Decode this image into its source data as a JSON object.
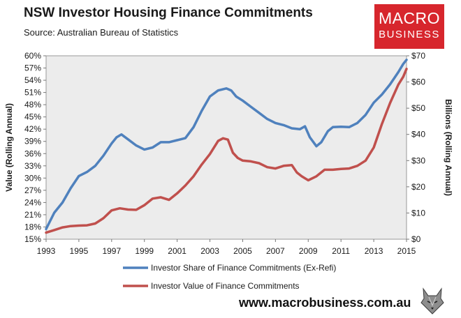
{
  "header": {
    "title": "NSW Investor Housing Finance Commitments",
    "subtitle": "Source: Australian Bureau of Statistics"
  },
  "logo": {
    "line1": "MACRO",
    "line2": "BUSINESS"
  },
  "footer": {
    "url": "www.macrobusiness.com.au"
  },
  "colors": {
    "blue": "#4f81bd",
    "red": "#c0504d",
    "plot_bg": "#ececec",
    "logo_red": "#d7262d"
  },
  "chart_data": {
    "type": "line",
    "title": "NSW Investor Housing Finance Commitments",
    "subtitle": "Source: Australian Bureau of Statistics",
    "ylabel_left": "Value (Rolling Annual)",
    "ylabel_right": "Billions (Rolling Annual)",
    "xlim": [
      1993,
      2015
    ],
    "ylim_left": [
      15,
      60
    ],
    "ylim_right": [
      0,
      70
    ],
    "x_ticks": [
      "1993",
      "1995",
      "1997",
      "1999",
      "2001",
      "2003",
      "2005",
      "2007",
      "2009",
      "2011",
      "2013",
      "2015"
    ],
    "y_ticks_left": [
      "60%",
      "57%",
      "54%",
      "51%",
      "48%",
      "45%",
      "42%",
      "39%",
      "36%",
      "33%",
      "30%",
      "27%",
      "24%",
      "21%",
      "18%",
      "15%"
    ],
    "y_ticks_right": [
      "$70",
      "$60",
      "$50",
      "$40",
      "$30",
      "$20",
      "$10",
      "$0"
    ],
    "grid": false,
    "legend_position": "bottom",
    "series": [
      {
        "name": "Investor Share of Finance Commitments (Ex-Refi)",
        "axis": "left",
        "unit": "%",
        "color": "#4f81bd",
        "x": [
          1993.0,
          1993.5,
          1994.0,
          1994.5,
          1995.0,
          1995.5,
          1996.0,
          1996.5,
          1997.0,
          1997.3,
          1997.6,
          1998.0,
          1998.5,
          1999.0,
          1999.5,
          2000.0,
          2000.5,
          2001.0,
          2001.5,
          2002.0,
          2002.5,
          2003.0,
          2003.5,
          2004.0,
          2004.3,
          2004.6,
          2005.0,
          2005.5,
          2006.0,
          2006.5,
          2007.0,
          2007.5,
          2008.0,
          2008.5,
          2008.8,
          2009.1,
          2009.5,
          2009.8,
          2010.2,
          2010.5,
          2011.0,
          2011.5,
          2012.0,
          2012.5,
          2013.0,
          2013.5,
          2014.0,
          2014.5,
          2014.8,
          2015.0
        ],
        "values": [
          17.5,
          21.5,
          24.0,
          27.5,
          30.5,
          31.5,
          33.0,
          35.5,
          38.5,
          40.0,
          40.7,
          39.5,
          38.0,
          37.0,
          37.5,
          38.8,
          38.8,
          39.3,
          39.8,
          42.5,
          46.5,
          50.0,
          51.5,
          52.0,
          51.5,
          50.0,
          49.0,
          47.5,
          46.0,
          44.5,
          43.5,
          43.0,
          42.2,
          42.0,
          42.7,
          40.0,
          37.8,
          38.8,
          41.5,
          42.5,
          42.6,
          42.5,
          43.5,
          45.5,
          48.5,
          50.5,
          53.0,
          56.0,
          58.0,
          59.0
        ]
      },
      {
        "name": "Investor Value of Finance Commitments",
        "axis": "right",
        "unit": "$bn",
        "color": "#c0504d",
        "x": [
          1993.0,
          1993.5,
          1994.0,
          1994.5,
          1995.0,
          1995.5,
          1996.0,
          1996.5,
          1997.0,
          1997.5,
          1998.0,
          1998.5,
          1999.0,
          1999.5,
          2000.0,
          2000.5,
          2001.0,
          2001.5,
          2002.0,
          2002.5,
          2003.0,
          2003.5,
          2003.8,
          2004.1,
          2004.4,
          2004.7,
          2005.0,
          2005.5,
          2006.0,
          2006.5,
          2007.0,
          2007.5,
          2008.0,
          2008.3,
          2008.6,
          2009.0,
          2009.5,
          2010.0,
          2010.5,
          2011.0,
          2011.5,
          2012.0,
          2012.5,
          2013.0,
          2013.5,
          2014.0,
          2014.5,
          2014.8,
          2015.0
        ],
        "values": [
          2.5,
          3.5,
          4.5,
          5.0,
          5.2,
          5.3,
          6.0,
          8.0,
          11.0,
          11.8,
          11.3,
          11.2,
          13.0,
          15.5,
          16.0,
          15.0,
          17.5,
          20.5,
          24.0,
          28.5,
          32.5,
          37.5,
          38.5,
          38.0,
          33.0,
          31.0,
          30.0,
          29.7,
          29.0,
          27.5,
          27.0,
          28.0,
          28.3,
          25.5,
          24.0,
          22.5,
          24.0,
          26.5,
          26.5,
          26.8,
          27.0,
          28.0,
          30.0,
          35.0,
          44.0,
          52.0,
          59.0,
          62.0,
          65.0
        ]
      }
    ]
  }
}
